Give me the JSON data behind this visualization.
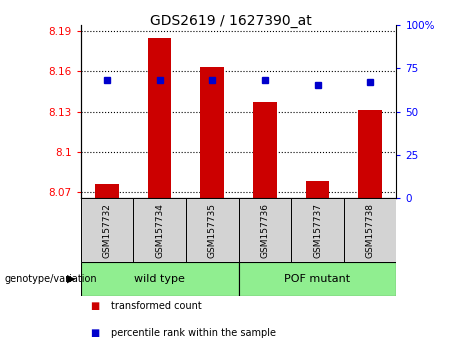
{
  "title": "GDS2619 / 1627390_at",
  "samples": [
    "GSM157732",
    "GSM157734",
    "GSM157735",
    "GSM157736",
    "GSM157737",
    "GSM157738"
  ],
  "bar_values": [
    8.076,
    8.185,
    8.163,
    8.137,
    8.078,
    8.131
  ],
  "percentile_values": [
    68,
    68,
    68,
    68,
    65,
    67
  ],
  "ylim_left": [
    8.065,
    8.195
  ],
  "ylim_right": [
    0,
    100
  ],
  "yticks_left": [
    8.07,
    8.1,
    8.13,
    8.16,
    8.19
  ],
  "yticks_right": [
    0,
    25,
    50,
    75,
    100
  ],
  "ytick_labels_left": [
    "8.07",
    "8.1",
    "8.13",
    "8.16",
    "8.19"
  ],
  "ytick_labels_right": [
    "0",
    "25",
    "50",
    "75",
    "100%"
  ],
  "bar_color": "#CC0000",
  "dot_color": "#0000CC",
  "bar_baseline": 8.065,
  "legend_items": [
    {
      "label": "transformed count",
      "color": "#CC0000"
    },
    {
      "label": "percentile rank within the sample",
      "color": "#0000CC"
    }
  ],
  "group_box_color": "#90EE90",
  "sample_box_color": "#D3D3D3",
  "group_label": "genotype/variation",
  "groups": [
    {
      "label": "wild type",
      "start": 0,
      "end": 2
    },
    {
      "label": "POF mutant",
      "start": 3,
      "end": 5
    }
  ]
}
